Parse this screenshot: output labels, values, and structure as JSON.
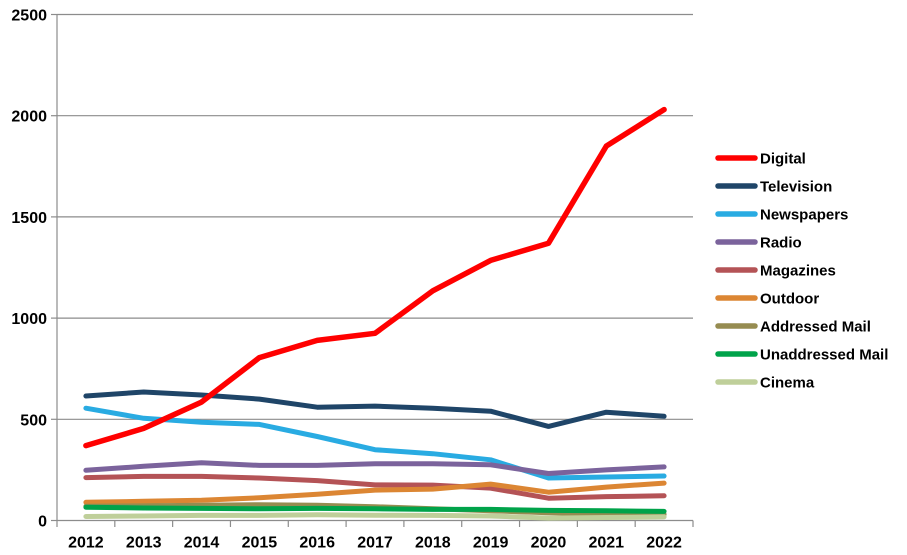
{
  "chart_data": {
    "type": "line",
    "title": "",
    "xlabel": "",
    "ylabel": "",
    "x_categories": [
      "2012",
      "2013",
      "2014",
      "2015",
      "2016",
      "2017",
      "2018",
      "2019",
      "2020",
      "2021",
      "2022"
    ],
    "ylim": [
      0,
      2500
    ],
    "yticks": [
      0,
      500,
      1000,
      1500,
      2000,
      2500
    ],
    "grid": "horizontal",
    "legend_position": "right",
    "gridline_color": "#8C8C8C",
    "axis_color": "#8C8C8C",
    "text_color": "#000000",
    "series": [
      {
        "name": "Digital",
        "color": "#FF0000",
        "values": [
          370,
          455,
          585,
          805,
          890,
          925,
          1135,
          1285,
          1370,
          1850,
          2030
        ]
      },
      {
        "name": "Television",
        "color": "#1F4568",
        "values": [
          615,
          635,
          620,
          600,
          560,
          565,
          555,
          540,
          465,
          535,
          515
        ]
      },
      {
        "name": "Newspapers",
        "color": "#29ABE2",
        "values": [
          555,
          505,
          485,
          475,
          415,
          350,
          330,
          300,
          210,
          215,
          220
        ]
      },
      {
        "name": "Radio",
        "color": "#7B639C",
        "values": [
          248,
          268,
          285,
          272,
          272,
          280,
          280,
          275,
          232,
          250,
          265
        ]
      },
      {
        "name": "Magazines",
        "color": "#B45356",
        "values": [
          212,
          218,
          218,
          210,
          197,
          176,
          175,
          160,
          110,
          118,
          122
        ]
      },
      {
        "name": "Outdoor",
        "color": "#DC8633",
        "values": [
          90,
          95,
          100,
          112,
          130,
          150,
          155,
          180,
          140,
          165,
          185
        ]
      },
      {
        "name": "Addressed Mail",
        "color": "#968C51",
        "values": [
          70,
          72,
          75,
          78,
          75,
          68,
          58,
          48,
          38,
          33,
          30
        ]
      },
      {
        "name": "Unaddressed Mail",
        "color": "#00A34A",
        "values": [
          65,
          62,
          60,
          58,
          60,
          58,
          55,
          55,
          50,
          48,
          45
        ]
      },
      {
        "name": "Cinema",
        "color": "#BFCF9A",
        "values": [
          20,
          22,
          25,
          25,
          28,
          26,
          25,
          22,
          12,
          15,
          18
        ]
      }
    ]
  }
}
